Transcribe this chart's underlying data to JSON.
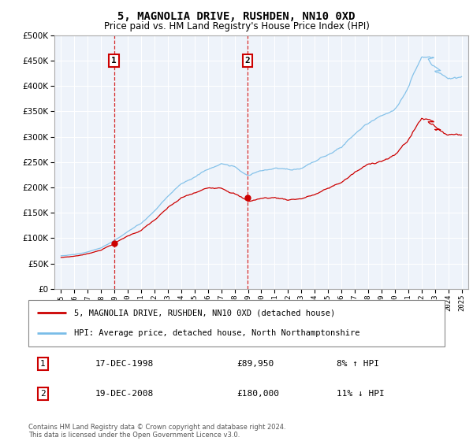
{
  "title": "5, MAGNOLIA DRIVE, RUSHDEN, NN10 0XD",
  "subtitle": "Price paid vs. HM Land Registry's House Price Index (HPI)",
  "legend_line1": "5, MAGNOLIA DRIVE, RUSHDEN, NN10 0XD (detached house)",
  "legend_line2": "HPI: Average price, detached house, North Northamptonshire",
  "annotation1_date": "17-DEC-1998",
  "annotation1_price": "£89,950",
  "annotation1_hpi": "8% ↑ HPI",
  "annotation2_date": "19-DEC-2008",
  "annotation2_price": "£180,000",
  "annotation2_hpi": "11% ↓ HPI",
  "footer": "Contains HM Land Registry data © Crown copyright and database right 2024.\nThis data is licensed under the Open Government Licence v3.0.",
  "sale1_year": 1998.96,
  "sale1_value": 89950,
  "sale2_year": 2008.96,
  "sale2_value": 180000,
  "hpi_color": "#7abde8",
  "price_color": "#cc0000",
  "plot_bg": "#eef3fa",
  "grid_color": "#ffffff",
  "ylim_min": 0,
  "ylim_max": 500000,
  "yticks": [
    0,
    50000,
    100000,
    150000,
    200000,
    250000,
    300000,
    350000,
    400000,
    450000,
    500000
  ],
  "xlim_min": 1994.5,
  "xlim_max": 2025.5,
  "xticks": [
    1995,
    1996,
    1997,
    1998,
    1999,
    2000,
    2001,
    2002,
    2003,
    2004,
    2005,
    2006,
    2007,
    2008,
    2009,
    2010,
    2011,
    2012,
    2013,
    2014,
    2015,
    2016,
    2017,
    2018,
    2019,
    2020,
    2021,
    2022,
    2023,
    2024,
    2025
  ]
}
